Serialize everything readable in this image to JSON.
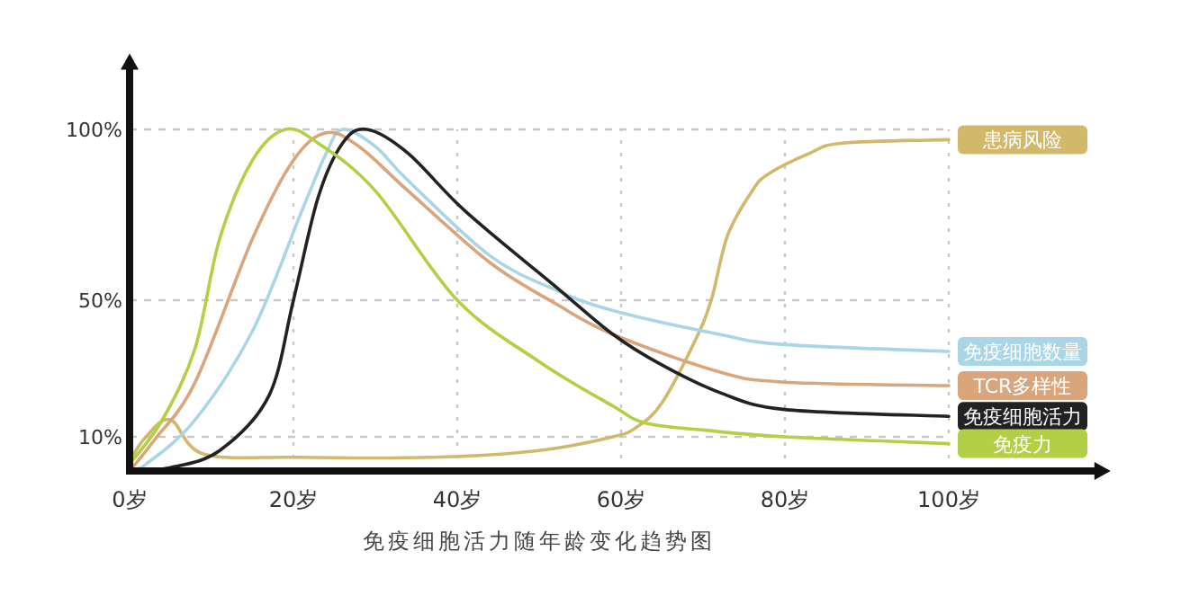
{
  "chart_data": {
    "type": "line",
    "title": "免疫细胞活力随年龄变化趋势图",
    "xlim": [
      0,
      118
    ],
    "ylim": [
      0,
      118
    ],
    "xticks": [
      {
        "value": 0,
        "label": "0岁"
      },
      {
        "value": 20,
        "label": "20岁"
      },
      {
        "value": 40,
        "label": "40岁"
      },
      {
        "value": 60,
        "label": "60岁"
      },
      {
        "value": 80,
        "label": "80岁"
      },
      {
        "value": 100,
        "label": "100岁"
      }
    ],
    "yticks": [
      {
        "value": 10,
        "label": "10%"
      },
      {
        "value": 50,
        "label": "50%"
      },
      {
        "value": 100,
        "label": "100%"
      }
    ],
    "grid": true,
    "legend": false,
    "line_style": "solid",
    "series": [
      {
        "name": "患病风险",
        "color": "#d2b86a",
        "x": [
          0,
          2,
          5,
          9,
          20,
          37,
          50,
          59,
          62,
          65,
          69,
          71,
          73,
          76,
          78,
          83,
          87,
          100
        ],
        "values": [
          3,
          10,
          15,
          5,
          4,
          4,
          6,
          10,
          13,
          20,
          38,
          50,
          69,
          82,
          87,
          93,
          96,
          97
        ]
      },
      {
        "name": "免疫细胞数量",
        "color": "#a9d6e6",
        "x": [
          0,
          2,
          8,
          15,
          21,
          24,
          26,
          30,
          34,
          44,
          52,
          59,
          72,
          80,
          100
        ],
        "values": [
          0,
          2,
          15,
          41,
          76,
          93,
          100,
          95,
          85,
          63,
          53,
          47,
          40,
          37,
          35
        ]
      },
      {
        "name": "TCR多样性",
        "color": "#d9a57c",
        "x": [
          0,
          3,
          8,
          15,
          20,
          24,
          28,
          34,
          44,
          52,
          59,
          72,
          80,
          100
        ],
        "values": [
          0,
          9,
          26,
          68,
          91,
          99,
          95,
          82,
          61,
          49,
          40,
          29,
          26,
          25
        ]
      },
      {
        "name": "免疫细胞活力",
        "color": "#222222",
        "x": [
          0,
          5,
          11,
          17,
          20,
          23,
          26,
          29,
          34,
          41,
          52,
          59,
          65,
          72,
          80,
          100
        ],
        "values": [
          0,
          1,
          6,
          22,
          50,
          80,
          96,
          100,
          93,
          76,
          54,
          40,
          31,
          23,
          18,
          16
        ]
      },
      {
        "name": "免疫力",
        "color": "#b3cf45",
        "x": [
          0,
          4,
          8,
          11,
          15,
          19,
          23,
          30,
          40,
          50,
          59,
          63,
          70,
          80,
          100
        ],
        "values": [
          2,
          15,
          36,
          68,
          91,
          100,
          96,
          82,
          50,
          32,
          19,
          14,
          12,
          10,
          8
        ]
      }
    ]
  }
}
